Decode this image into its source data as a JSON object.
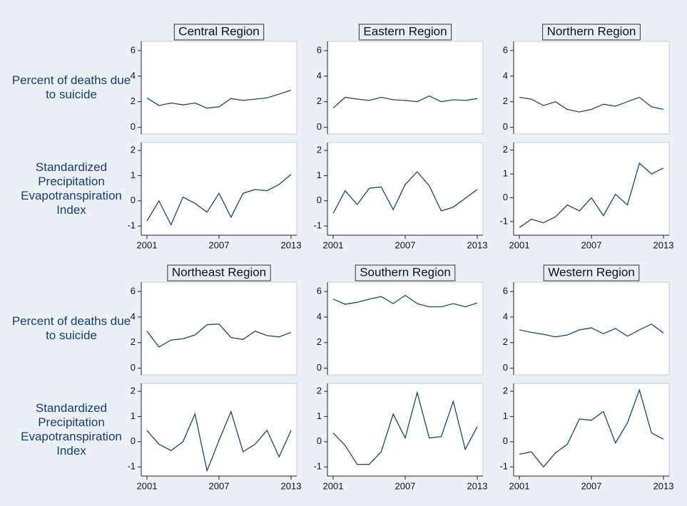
{
  "chart_data": [
    {
      "type": "line",
      "title": "Central Region",
      "ylabel": "Percent of deaths due to suicide",
      "x": [
        2001,
        2002,
        2003,
        2004,
        2005,
        2006,
        2007,
        2008,
        2009,
        2010,
        2011,
        2012,
        2013
      ],
      "values": [
        2.3,
        1.7,
        1.9,
        1.75,
        1.9,
        1.5,
        1.6,
        2.25,
        2.1,
        2.2,
        2.3,
        2.6,
        2.9
      ],
      "color": "#1a476f",
      "xlim": [
        2001,
        2013
      ],
      "ylim": [
        -0.3,
        6.5
      ],
      "yticks": [
        0,
        2,
        4,
        6
      ]
    },
    {
      "type": "line",
      "title": "Eastern Region",
      "x": [
        2001,
        2002,
        2003,
        2004,
        2005,
        2006,
        2007,
        2008,
        2009,
        2010,
        2011,
        2012,
        2013
      ],
      "values": [
        1.5,
        2.35,
        2.2,
        2.1,
        2.35,
        2.15,
        2.1,
        2.0,
        2.45,
        2.0,
        2.15,
        2.1,
        2.25
      ],
      "color": "#1a476f",
      "xlim": [
        2001,
        2013
      ],
      "ylim": [
        -0.3,
        6.5
      ],
      "yticks": [
        0,
        2,
        4,
        6
      ]
    },
    {
      "type": "line",
      "title": "Northern Region",
      "x": [
        2001,
        2002,
        2003,
        2004,
        2005,
        2006,
        2007,
        2008,
        2009,
        2010,
        2011,
        2012,
        2013
      ],
      "values": [
        2.35,
        2.2,
        1.7,
        2.0,
        1.4,
        1.2,
        1.4,
        1.8,
        1.65,
        2.0,
        2.35,
        1.6,
        1.4
      ],
      "color": "#1a476f",
      "xlim": [
        2001,
        2013
      ],
      "ylim": [
        -0.3,
        6.5
      ],
      "yticks": [
        0,
        2,
        4,
        6
      ]
    },
    {
      "type": "line",
      "ylabel": "Standardized Precipitation Evapotranspiration Index",
      "x": [
        2001,
        2002,
        2003,
        2004,
        2005,
        2006,
        2007,
        2008,
        2009,
        2010,
        2011,
        2012,
        2013
      ],
      "values": [
        -0.8,
        0.0,
        -0.95,
        0.15,
        -0.1,
        -0.45,
        0.3,
        -0.65,
        0.3,
        0.45,
        0.4,
        0.65,
        1.05
      ],
      "color": "#1a476f",
      "xlim": [
        2001,
        2013
      ],
      "xticks": [
        2001,
        2007,
        2013
      ],
      "ylim": [
        -1.25,
        2.2
      ],
      "yticks": [
        -1,
        0,
        1,
        2
      ]
    },
    {
      "type": "line",
      "x": [
        2001,
        2002,
        2003,
        2004,
        2005,
        2006,
        2007,
        2008,
        2009,
        2010,
        2011,
        2012,
        2013
      ],
      "values": [
        -0.5,
        0.4,
        -0.15,
        0.5,
        0.55,
        -0.35,
        0.65,
        1.15,
        0.6,
        -0.4,
        -0.25,
        0.1,
        0.45
      ],
      "color": "#1a476f",
      "xlim": [
        2001,
        2013
      ],
      "xticks": [
        2001,
        2007,
        2013
      ],
      "ylim": [
        -1.25,
        2.2
      ],
      "yticks": [
        -1,
        0,
        1,
        2
      ]
    },
    {
      "type": "line",
      "x": [
        2001,
        2002,
        2003,
        2004,
        2005,
        2006,
        2007,
        2008,
        2009,
        2010,
        2011,
        2012,
        2013
      ],
      "values": [
        -1.25,
        -0.9,
        -1.05,
        -0.8,
        -0.3,
        -0.55,
        0.0,
        -0.75,
        0.15,
        -0.3,
        1.45,
        1.0,
        1.25
      ],
      "color": "#1a476f",
      "xlim": [
        2001,
        2013
      ],
      "xticks": [
        2001,
        2007,
        2013
      ],
      "ylim": [
        -1.45,
        2.2
      ],
      "yticks": [
        -1,
        0,
        1,
        2
      ]
    },
    {
      "type": "line",
      "title": "Northeast Region",
      "ylabel": "Percent of deaths due to suicide",
      "x": [
        2001,
        2002,
        2003,
        2004,
        2005,
        2006,
        2007,
        2008,
        2009,
        2010,
        2011,
        2012,
        2013
      ],
      "values": [
        2.9,
        1.65,
        2.2,
        2.3,
        2.6,
        3.4,
        3.45,
        2.4,
        2.25,
        2.9,
        2.55,
        2.45,
        2.8
      ],
      "color": "#1a476f",
      "xlim": [
        2001,
        2013
      ],
      "ylim": [
        -0.3,
        6.5
      ],
      "yticks": [
        0,
        2,
        4,
        6
      ]
    },
    {
      "type": "line",
      "title": "Southern Region",
      "x": [
        2001,
        2002,
        2003,
        2004,
        2005,
        2006,
        2007,
        2008,
        2009,
        2010,
        2011,
        2012,
        2013
      ],
      "values": [
        5.4,
        5.0,
        5.15,
        5.4,
        5.6,
        5.05,
        5.7,
        5.05,
        4.8,
        4.8,
        5.05,
        4.8,
        5.1
      ],
      "color": "#1a476f",
      "xlim": [
        2001,
        2013
      ],
      "ylim": [
        -0.3,
        6.5
      ],
      "yticks": [
        0,
        2,
        4,
        6
      ]
    },
    {
      "type": "line",
      "title": "Western Region",
      "x": [
        2001,
        2002,
        2003,
        2004,
        2005,
        2006,
        2007,
        2008,
        2009,
        2010,
        2011,
        2012,
        2013
      ],
      "values": [
        3.0,
        2.8,
        2.65,
        2.45,
        2.6,
        3.0,
        3.15,
        2.7,
        3.1,
        2.5,
        3.0,
        3.45,
        2.75
      ],
      "color": "#1a476f",
      "xlim": [
        2001,
        2013
      ],
      "ylim": [
        -0.3,
        6.5
      ],
      "yticks": [
        0,
        2,
        4,
        6
      ]
    },
    {
      "type": "line",
      "ylabel": "Standardized Precipitation Evapotranspiration Index",
      "x": [
        2001,
        2002,
        2003,
        2004,
        2005,
        2006,
        2007,
        2008,
        2009,
        2010,
        2011,
        2012,
        2013
      ],
      "values": [
        0.45,
        -0.1,
        -0.35,
        0.0,
        1.1,
        -1.15,
        0.05,
        1.2,
        -0.4,
        -0.1,
        0.45,
        -0.6,
        0.45
      ],
      "color": "#1a476f",
      "xlim": [
        2001,
        2013
      ],
      "xticks": [
        2001,
        2007,
        2013
      ],
      "ylim": [
        -1.25,
        2.2
      ],
      "yticks": [
        -1,
        0,
        1,
        2
      ]
    },
    {
      "type": "line",
      "x": [
        2001,
        2002,
        2003,
        2004,
        2005,
        2006,
        2007,
        2008,
        2009,
        2010,
        2011,
        2012,
        2013
      ],
      "values": [
        0.35,
        -0.15,
        -0.9,
        -0.9,
        -0.4,
        1.1,
        0.15,
        1.95,
        0.15,
        0.2,
        1.6,
        -0.3,
        0.6
      ],
      "color": "#1a476f",
      "xlim": [
        2001,
        2013
      ],
      "xticks": [
        2001,
        2007,
        2013
      ],
      "ylim": [
        -1.25,
        2.2
      ],
      "yticks": [
        -1,
        0,
        1,
        2
      ]
    },
    {
      "type": "line",
      "x": [
        2001,
        2002,
        2003,
        2004,
        2005,
        2006,
        2007,
        2008,
        2009,
        2010,
        2011,
        2012,
        2013
      ],
      "values": [
        -0.5,
        -0.4,
        -1.0,
        -0.45,
        -0.1,
        0.9,
        0.85,
        1.2,
        -0.05,
        0.75,
        2.05,
        0.35,
        0.1
      ],
      "color": "#1a476f",
      "xlim": [
        2001,
        2013
      ],
      "xticks": [
        2001,
        2007,
        2013
      ],
      "ylim": [
        -1.25,
        2.2
      ],
      "yticks": [
        -1,
        0,
        1,
        2
      ]
    }
  ]
}
